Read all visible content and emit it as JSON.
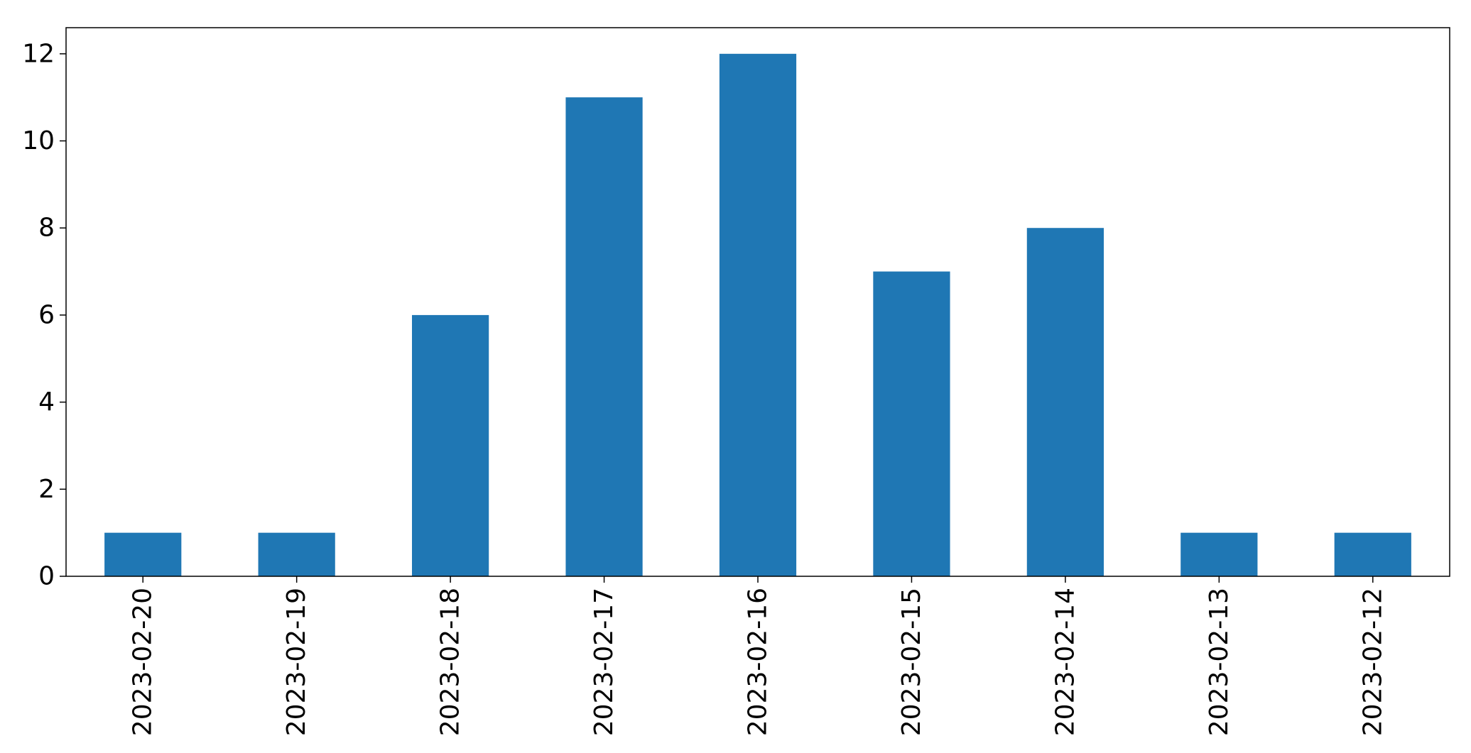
{
  "chart_data": {
    "type": "bar",
    "categories": [
      "2023-02-20",
      "2023-02-19",
      "2023-02-18",
      "2023-02-17",
      "2023-02-16",
      "2023-02-15",
      "2023-02-14",
      "2023-02-13",
      "2023-02-12"
    ],
    "values": [
      1,
      1,
      6,
      11,
      12,
      7,
      8,
      1,
      1
    ],
    "title": "",
    "xlabel": "",
    "ylabel": "",
    "ylim": [
      0,
      12.6
    ],
    "yticks": [
      0,
      2,
      4,
      6,
      8,
      10,
      12
    ],
    "bar_color": "#1f77b4",
    "grid": false,
    "legend": "none",
    "x_tick_rotation": "vertical"
  }
}
